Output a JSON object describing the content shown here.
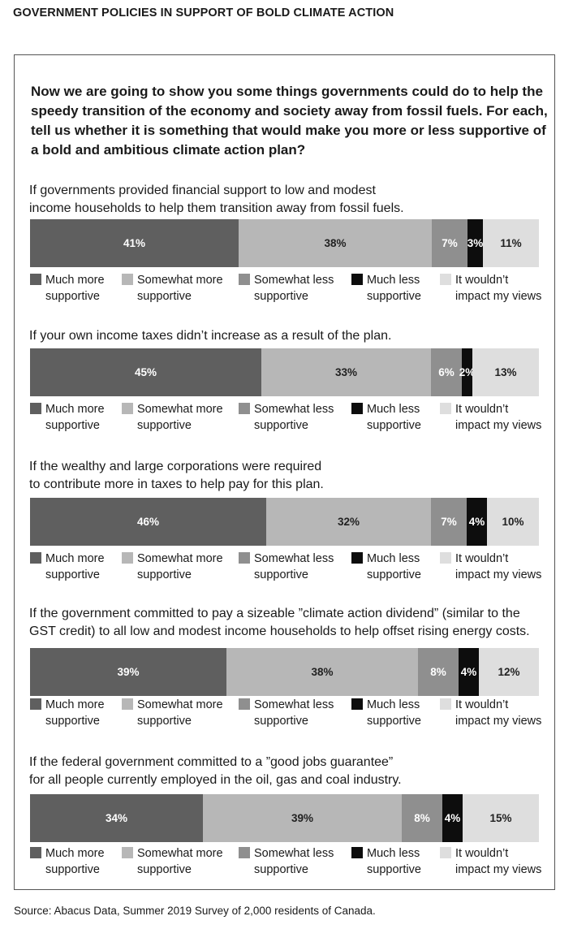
{
  "title": "GOVERNMENT POLICIES IN SUPPORT OF BOLD CLIMATE ACTION",
  "question": "Now we are going to show you some things governments could do to help the speedy transition of the economy and society away from fossil fuels. For each, tell us whether it is something that would make you more or less supportive of a bold and ambitious climate action plan?",
  "source": "Source: Abacus Data, Summer 2019 Survey of 2,000 residents of Canada.",
  "colors": [
    "#5f5f5f",
    "#b7b7b7",
    "#8f8f8f",
    "#0d0d0d",
    "#dedede"
  ],
  "chart_data": {
    "type": "bar",
    "orientation": "horizontal-stacked-100",
    "unit": "%",
    "series": [
      {
        "name": "Much more supportive",
        "line1": "Much more",
        "line2": "supportive"
      },
      {
        "name": "Somewhat more supportive",
        "line1": "Somewhat more",
        "line2": "supportive"
      },
      {
        "name": "Somewhat less supportive",
        "line1": "Somewhat less",
        "line2": "supportive"
      },
      {
        "name": "Much less supportive",
        "line1": "Much less",
        "line2": "supportive"
      },
      {
        "name": "It wouldn’t impact my views",
        "line1": "It wouldn’t",
        "line2": "impact my views"
      }
    ],
    "items": [
      {
        "question_lines": [
          "If governments provided financial support to low and modest",
          "income households to help them transition away from fossil fuels."
        ],
        "values": [
          41,
          38,
          7,
          3,
          11
        ],
        "labels": [
          "41%",
          "38%",
          "7%",
          "3%",
          "11%"
        ]
      },
      {
        "question_lines": [
          "If your own income taxes didn’t increase as a result of the plan."
        ],
        "values": [
          45,
          33,
          6,
          2,
          13
        ],
        "labels": [
          "45%",
          "33%",
          "6%",
          "2%",
          "13%"
        ]
      },
      {
        "question_lines": [
          "If the wealthy and large corporations were required",
          "to contribute more in taxes to help pay for this plan."
        ],
        "values": [
          46,
          32,
          7,
          4,
          10
        ],
        "labels": [
          "46%",
          "32%",
          "7%",
          "4%",
          "10%"
        ]
      },
      {
        "question_lines": [
          "If the government committed to pay a sizeable ”climate action dividend” (similar to the",
          "GST credit) to all low and modest income households to help offset rising energy costs."
        ],
        "values": [
          39,
          38,
          8,
          4,
          12
        ],
        "labels": [
          "39%",
          "38%",
          "8%",
          "4%",
          "12%"
        ]
      },
      {
        "question_lines": [
          "If the federal government committed to a ”good jobs guarantee”",
          "for all people currently employed in the oil, gas and coal industry."
        ],
        "values": [
          34,
          39,
          8,
          4,
          15
        ],
        "labels": [
          "34%",
          "39%",
          "8%",
          "4%",
          "15%"
        ]
      }
    ]
  }
}
